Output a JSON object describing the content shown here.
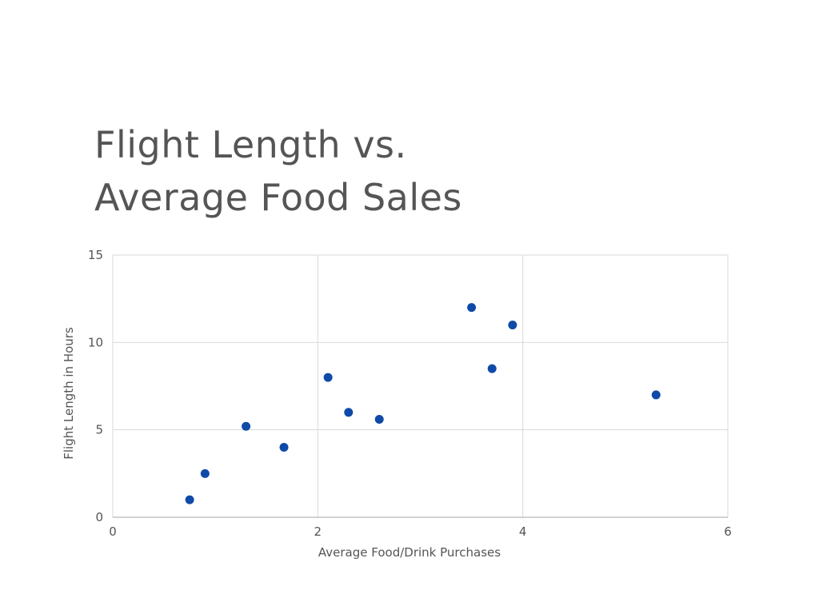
{
  "chart_data": {
    "type": "scatter",
    "title_lines": [
      "Flight Length vs.",
      "Average Food Sales"
    ],
    "xlabel": "Average Food/Drink Purchases",
    "ylabel": "Flight Length in Hours",
    "xlim": [
      0,
      6
    ],
    "ylim": [
      0,
      15
    ],
    "x_ticks": [
      0,
      2,
      4,
      6
    ],
    "y_ticks": [
      0,
      5,
      10,
      15
    ],
    "grid": true,
    "legend": "none",
    "marker_color": "#0f4aa8",
    "points": [
      {
        "x": 0.75,
        "y": 1
      },
      {
        "x": 0.9,
        "y": 2.5
      },
      {
        "x": 1.3,
        "y": 5.2
      },
      {
        "x": 1.67,
        "y": 4
      },
      {
        "x": 2.1,
        "y": 8
      },
      {
        "x": 2.3,
        "y": 6
      },
      {
        "x": 2.6,
        "y": 5.6
      },
      {
        "x": 3.5,
        "y": 12
      },
      {
        "x": 3.7,
        "y": 8.5
      },
      {
        "x": 3.9,
        "y": 11
      },
      {
        "x": 5.3,
        "y": 7
      }
    ]
  }
}
